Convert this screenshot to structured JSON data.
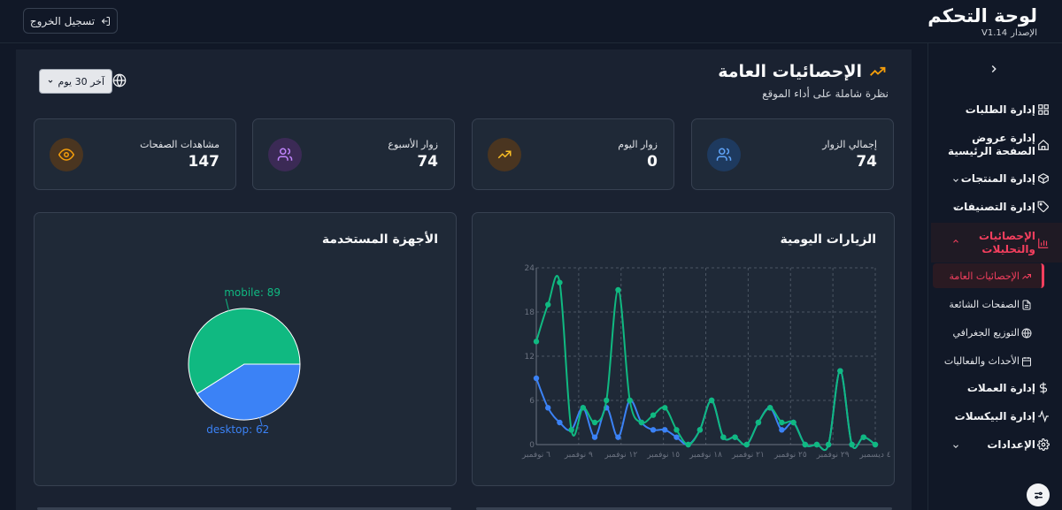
{
  "header": {
    "logout_label": "تسجيل الخروج",
    "title": "لوحة التحكم",
    "version_label": "الإصدار",
    "version": "V1.14"
  },
  "sidebar": {
    "items": [
      {
        "label": "إدارة الطلبات",
        "icon": "grid-icon"
      },
      {
        "label": "إدارة عروض الصفحة الرئيسية",
        "icon": "home-icon"
      },
      {
        "label": "إدارة المنتجات",
        "icon": "box-icon",
        "chevron": "down"
      },
      {
        "label": "إدارة التصنيفات",
        "icon": "tag-icon",
        "chevron": "down"
      },
      {
        "label": "الإحصائيات والتحليلات",
        "icon": "bar-chart-icon",
        "chevron": "up"
      },
      {
        "label": "إدارة العملات",
        "icon": "dollar-icon"
      },
      {
        "label": "إدارة البيكسلات",
        "icon": "activity-icon"
      },
      {
        "label": "الإعدادات",
        "icon": "gear-icon",
        "chevron": "down"
      }
    ],
    "subitems": [
      {
        "label": "الإحصائيات العامة",
        "icon": "trending-up-icon"
      },
      {
        "label": "الصفحات الشائعة",
        "icon": "file-icon"
      },
      {
        "label": "التوزيع الجغرافي",
        "icon": "globe-icon"
      },
      {
        "label": "الأحداث والفعاليات",
        "icon": "calendar-icon"
      }
    ]
  },
  "main": {
    "title": "الإحصائيات العامة",
    "subtitle": "نظرة شاملة على أداء الموقع",
    "range": "آخر 30 يوم",
    "stats": [
      {
        "label": "إجمالي الزوار",
        "value": "74",
        "icon": "users-icon",
        "color": "#60a5fa",
        "bg": "#1e3a5f"
      },
      {
        "label": "زوار اليوم",
        "value": "0",
        "icon": "trending-up-icon",
        "color": "#fbbf24",
        "bg": "#4a3520"
      },
      {
        "label": "زوار الأسبوع",
        "value": "74",
        "icon": "users-icon",
        "color": "#c084fc",
        "bg": "#3b2a55"
      },
      {
        "label": "مشاهدات الصفحات",
        "value": "147",
        "icon": "eye-icon",
        "color": "#f59e0b",
        "bg": "#4a3520"
      }
    ],
    "panels": {
      "line_title": "الزيارات اليومية",
      "pie_title": "الأجهزة المستخدمة"
    }
  },
  "colors": {
    "green": "#10b981",
    "blue": "#3b82f6",
    "accent": "#f43f5e"
  },
  "chart_data": [
    {
      "type": "line",
      "title": "الزيارات اليومية",
      "x_ticks": [
        "٦ نوفمبر",
        "٩ نوفمبر",
        "١٢ نوفمبر",
        "١٥ نوفمبر",
        "١٨ نوفمبر",
        "٢١ نوفمبر",
        "٢٥ نوفمبر",
        "٢٩ نوفمبر",
        "٤ ديسمبر"
      ],
      "y_ticks": [
        "0",
        "6",
        "12",
        "18",
        "24"
      ],
      "ylim": [
        0,
        24
      ],
      "grid": true,
      "n_points": 30,
      "series": [
        {
          "color": "#10b981",
          "values": [
            14,
            19,
            22,
            2,
            5,
            3,
            6,
            21,
            6,
            3,
            4,
            5,
            2,
            0,
            2,
            6,
            1,
            1,
            0,
            3,
            5,
            3,
            3,
            0,
            0,
            0,
            10,
            0,
            1,
            0
          ]
        },
        {
          "color": "#3b82f6",
          "values": [
            9,
            5,
            3,
            2,
            5,
            1,
            5,
            1,
            6,
            3,
            2,
            2,
            1,
            0,
            2,
            6,
            1,
            1,
            0,
            3,
            5,
            2,
            3,
            0,
            0,
            0,
            10,
            0,
            1,
            0
          ]
        }
      ]
    },
    {
      "type": "pie",
      "title": "الأجهزة المستخدمة",
      "slices": [
        {
          "label": "mobile",
          "value": 89,
          "color": "#10b981",
          "text": "mobile: 89"
        },
        {
          "label": "desktop",
          "value": 62,
          "color": "#3b82f6",
          "text": "desktop: 62"
        }
      ]
    }
  ]
}
